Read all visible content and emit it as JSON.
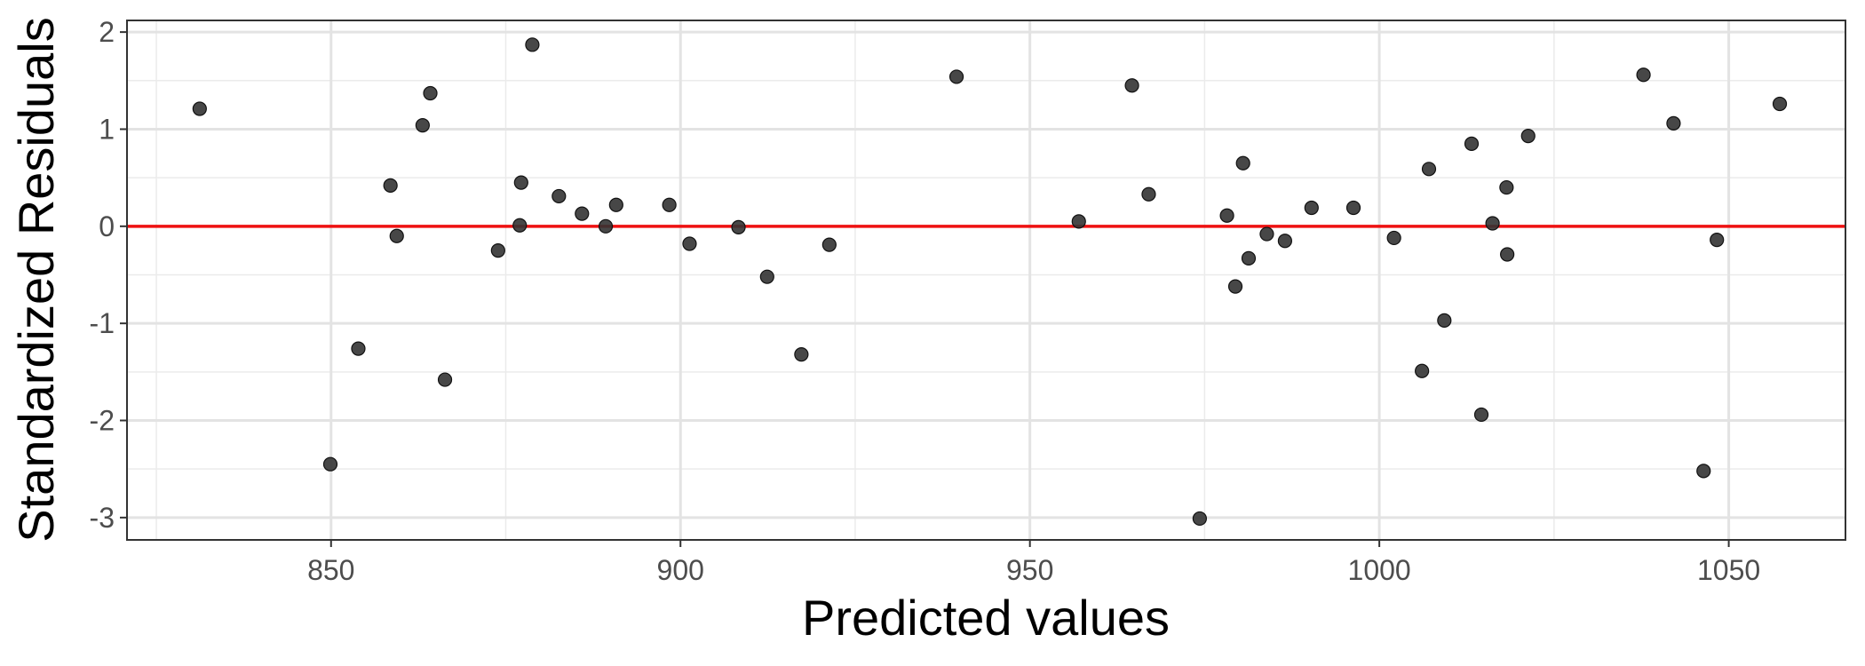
{
  "chart_data": {
    "type": "scatter",
    "title": "",
    "xlabel": "Predicted values",
    "ylabel": "Standardized Residuals",
    "xlim": [
      820.8,
      1066.7
    ],
    "ylim": [
      -3.23,
      2.12
    ],
    "x_ticks": [
      850,
      900,
      950,
      1000,
      1050
    ],
    "x_tick_labels": [
      "850",
      "900",
      "950",
      "1000",
      "1050"
    ],
    "y_ticks": [
      -3,
      -2,
      -1,
      0,
      1,
      2
    ],
    "y_tick_labels": [
      "-3",
      "-2",
      "-1",
      "0",
      "1",
      "2"
    ],
    "grid": true,
    "reference_line": {
      "y": 0,
      "color": "#ee1111"
    },
    "point_color": "#333333",
    "points": [
      {
        "x": 831.2,
        "y": 1.21
      },
      {
        "x": 849.9,
        "y": -2.45
      },
      {
        "x": 853.9,
        "y": -1.26
      },
      {
        "x": 858.5,
        "y": 0.42
      },
      {
        "x": 859.4,
        "y": -0.1
      },
      {
        "x": 863.1,
        "y": 1.04
      },
      {
        "x": 864.2,
        "y": 1.37
      },
      {
        "x": 866.3,
        "y": -1.58
      },
      {
        "x": 873.9,
        "y": -0.25
      },
      {
        "x": 877.0,
        "y": 0.01
      },
      {
        "x": 877.2,
        "y": 0.45
      },
      {
        "x": 878.8,
        "y": 1.87
      },
      {
        "x": 882.6,
        "y": 0.31
      },
      {
        "x": 885.9,
        "y": 0.13
      },
      {
        "x": 889.3,
        "y": 0.0
      },
      {
        "x": 890.8,
        "y": 0.22
      },
      {
        "x": 898.4,
        "y": 0.22
      },
      {
        "x": 901.3,
        "y": -0.18
      },
      {
        "x": 908.3,
        "y": -0.01
      },
      {
        "x": 912.4,
        "y": -0.52
      },
      {
        "x": 917.3,
        "y": -1.32
      },
      {
        "x": 921.3,
        "y": -0.19
      },
      {
        "x": 939.5,
        "y": 1.54
      },
      {
        "x": 957.0,
        "y": 0.05
      },
      {
        "x": 964.6,
        "y": 1.45
      },
      {
        "x": 967.0,
        "y": 0.33
      },
      {
        "x": 974.3,
        "y": -3.01
      },
      {
        "x": 978.2,
        "y": 0.11
      },
      {
        "x": 979.4,
        "y": -0.62
      },
      {
        "x": 980.5,
        "y": 0.65
      },
      {
        "x": 981.3,
        "y": -0.33
      },
      {
        "x": 983.9,
        "y": -0.08
      },
      {
        "x": 986.5,
        "y": -0.15
      },
      {
        "x": 990.3,
        "y": 0.19
      },
      {
        "x": 996.3,
        "y": 0.19
      },
      {
        "x": 1002.1,
        "y": -0.12
      },
      {
        "x": 1006.1,
        "y": -1.49
      },
      {
        "x": 1007.1,
        "y": 0.59
      },
      {
        "x": 1009.3,
        "y": -0.97
      },
      {
        "x": 1013.2,
        "y": 0.85
      },
      {
        "x": 1014.6,
        "y": -1.94
      },
      {
        "x": 1016.2,
        "y": 0.03
      },
      {
        "x": 1018.2,
        "y": 0.4
      },
      {
        "x": 1018.3,
        "y": -0.29
      },
      {
        "x": 1021.3,
        "y": 0.93
      },
      {
        "x": 1037.8,
        "y": 1.56
      },
      {
        "x": 1042.1,
        "y": 1.06
      },
      {
        "x": 1046.4,
        "y": -2.52
      },
      {
        "x": 1048.3,
        "y": -0.14
      },
      {
        "x": 1057.3,
        "y": 1.26
      }
    ]
  }
}
